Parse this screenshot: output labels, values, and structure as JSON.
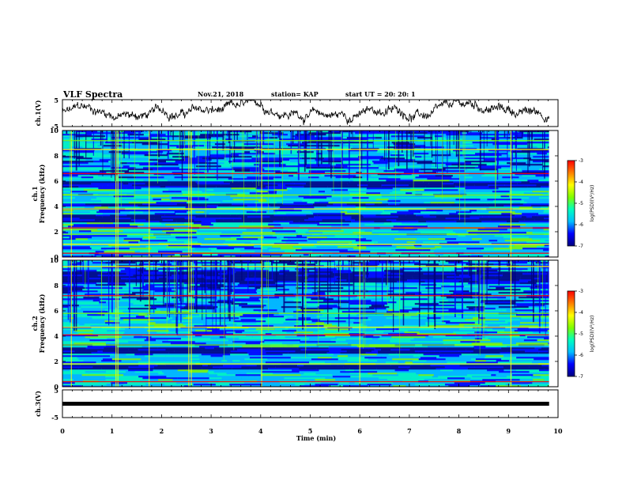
{
  "header": {
    "title": "VLF Spectra",
    "date": "Nov.21, 2018",
    "station": "station= KAP",
    "start": "start UT =  20: 20: 1"
  },
  "chart_data": [
    {
      "type": "line",
      "panel": "ch1-waveform",
      "ylabel": "ch.1(V)",
      "ylim": [
        -5,
        5
      ],
      "yticks": [
        "5",
        "-5"
      ],
      "xlim": [
        0,
        10
      ],
      "x_end": 9.82,
      "color": "#000000"
    },
    {
      "type": "heatmap",
      "panel": "ch1-spectrogram",
      "ylabel": "ch.1 Frequency (kHz)",
      "ylim": [
        0,
        10
      ],
      "yticks": [
        "0",
        "2",
        "4",
        "6",
        "8",
        "10"
      ],
      "xlim": [
        0,
        10
      ],
      "x_end": 9.82,
      "colorbar": {
        "label": "log(PSD)(V²/Hz)",
        "ticks": [
          "-3",
          "-4",
          "-5",
          "-6",
          "-7"
        ],
        "range": [
          -7,
          -3
        ]
      },
      "bright_lines_khz": [
        0.3,
        1.0,
        1.8,
        2.3,
        3.8,
        4.9,
        6.6,
        8.5,
        9.2
      ],
      "dark_bands_khz": [
        [
          2.7,
          3.3
        ],
        [
          5.4,
          5.9
        ],
        [
          3.9,
          4.2
        ]
      ],
      "colors": [
        "#00007f",
        "#0000ff",
        "#00bfff",
        "#00ffbf",
        "#7fff00",
        "#ffff00",
        "#ff7f00",
        "#ff0000"
      ]
    },
    {
      "type": "heatmap",
      "panel": "ch2-spectrogram",
      "ylabel": "ch.2 Frequency (kHz)",
      "ylim": [
        0,
        10
      ],
      "yticks": [
        "0",
        "2",
        "4",
        "6",
        "8",
        "10"
      ],
      "xlim": [
        0,
        10
      ],
      "x_end": 9.82,
      "colorbar": {
        "label": "log(PSD)(V²/Hz)",
        "ticks": [
          "-3",
          "-4",
          "-5",
          "-6",
          "-7"
        ],
        "range": [
          -7,
          -3
        ]
      },
      "bright_lines_khz": [
        0.4,
        1.8,
        3.3,
        4.1,
        4.7,
        5.8,
        7.2,
        9.5
      ],
      "dark_bands_khz": [
        [
          2.6,
          3.1
        ],
        [
          1.3,
          1.7
        ],
        [
          8.2,
          9.0
        ]
      ],
      "colors": [
        "#00007f",
        "#0000ff",
        "#00bfff",
        "#00ffbf",
        "#7fff00",
        "#ffff00",
        "#ff7f00",
        "#ff0000"
      ]
    },
    {
      "type": "line",
      "panel": "ch3-waveform",
      "ylabel": "ch.3(V)",
      "ylim": [
        -5,
        5
      ],
      "yticks": [
        "5",
        "-5"
      ],
      "xlim": [
        0,
        10
      ],
      "x_end": 9.82,
      "constant_value": 0,
      "color": "#000000"
    }
  ],
  "xaxis": {
    "label": "Time (min)",
    "ticks": [
      "0",
      "1",
      "2",
      "3",
      "4",
      "5",
      "6",
      "7",
      "8",
      "9",
      "10"
    ]
  }
}
